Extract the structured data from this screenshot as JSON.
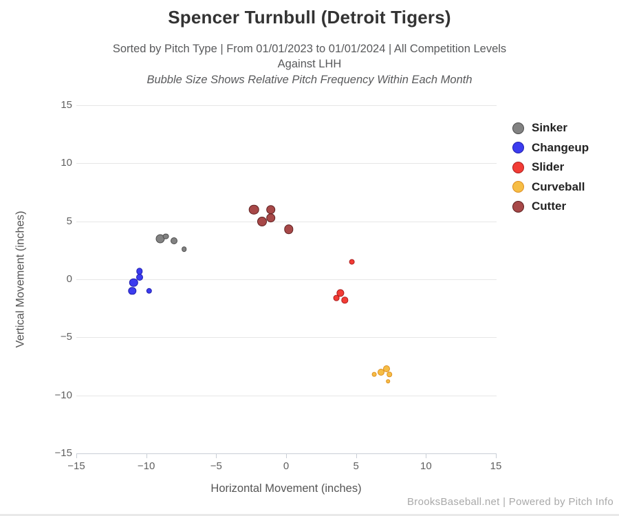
{
  "chart_data": {
    "type": "scatter",
    "title": "Spencer Turnbull (Detroit Tigers)",
    "subtitle": "Sorted by Pitch Type | From 01/01/2023 to 01/01/2024 | All Competition Levels",
    "subtitle2": "Against LHH",
    "subtitle3": "Bubble Size Shows Relative Pitch Frequency Within Each Month",
    "xlabel": "Horizontal Movement (inches)",
    "ylabel": "Vertical Movement (inches)",
    "credit": "BrooksBaseball.net | Powered by Pitch Info",
    "xlim": [
      -15,
      15
    ],
    "ylim": [
      -15,
      15
    ],
    "grid": "horizontal-lines-only",
    "legend_position": "right",
    "bubble_note": "bubble radius r is relative pitch frequency within each month",
    "xticks": [
      {
        "value": -15,
        "label": "−15"
      },
      {
        "value": -10,
        "label": "−10"
      },
      {
        "value": -5,
        "label": "−5"
      },
      {
        "value": 0,
        "label": "0"
      },
      {
        "value": 5,
        "label": "5"
      },
      {
        "value": 10,
        "label": "10"
      },
      {
        "value": 15,
        "label": "15"
      }
    ],
    "yticks": [
      {
        "value": 15,
        "label": "15"
      },
      {
        "value": 10,
        "label": "10"
      },
      {
        "value": 5,
        "label": "5"
      },
      {
        "value": 0,
        "label": "0"
      },
      {
        "value": -5,
        "label": "−5"
      },
      {
        "value": -10,
        "label": "−10"
      },
      {
        "value": -15,
        "label": "−15"
      }
    ],
    "series": [
      {
        "name": "Sinker",
        "fill": "#828282",
        "stroke": "#4c4c4c",
        "points": [
          {
            "x": -9.0,
            "y": 3.5,
            "r": 6.5
          },
          {
            "x": -8.6,
            "y": 3.7,
            "r": 4.4
          },
          {
            "x": -8.0,
            "y": 3.3,
            "r": 5.0
          },
          {
            "x": -7.3,
            "y": 2.6,
            "r": 3.8
          }
        ]
      },
      {
        "name": "Changeup",
        "fill": "#3c3cef",
        "stroke": "#2020ae",
        "points": [
          {
            "x": -10.9,
            "y": -0.3,
            "r": 6.2
          },
          {
            "x": -11.0,
            "y": -1.0,
            "r": 5.7
          },
          {
            "x": -10.5,
            "y": 0.2,
            "r": 5.0
          },
          {
            "x": -10.5,
            "y": 0.7,
            "r": 4.7
          },
          {
            "x": -9.8,
            "y": -1.0,
            "r": 4.2
          }
        ]
      },
      {
        "name": "Slider",
        "fill": "#f23c35",
        "stroke": "#ad1f1f",
        "points": [
          {
            "x": 4.7,
            "y": 1.5,
            "r": 4.4
          },
          {
            "x": 3.9,
            "y": -1.2,
            "r": 5.6
          },
          {
            "x": 3.6,
            "y": -1.6,
            "r": 4.4
          },
          {
            "x": 4.2,
            "y": -1.8,
            "r": 4.7
          }
        ]
      },
      {
        "name": "Curveball",
        "fill": "#f6bd45",
        "stroke": "#dd8f22",
        "points": [
          {
            "x": 6.3,
            "y": -8.2,
            "r": 3.4
          },
          {
            "x": 6.8,
            "y": -8.0,
            "r": 5.0
          },
          {
            "x": 7.2,
            "y": -7.7,
            "r": 5.0
          },
          {
            "x": 7.4,
            "y": -8.2,
            "r": 3.8
          },
          {
            "x": 7.3,
            "y": -8.8,
            "r": 2.8
          }
        ]
      },
      {
        "name": "Cutter",
        "fill": "#a74848",
        "stroke": "#5e2121",
        "points": [
          {
            "x": -2.3,
            "y": 6.0,
            "r": 7.3
          },
          {
            "x": -1.1,
            "y": 6.0,
            "r": 6.8
          },
          {
            "x": -1.7,
            "y": 5.0,
            "r": 7.0
          },
          {
            "x": -1.1,
            "y": 5.3,
            "r": 6.8
          },
          {
            "x": 0.2,
            "y": 4.3,
            "r": 6.7
          }
        ]
      }
    ]
  }
}
